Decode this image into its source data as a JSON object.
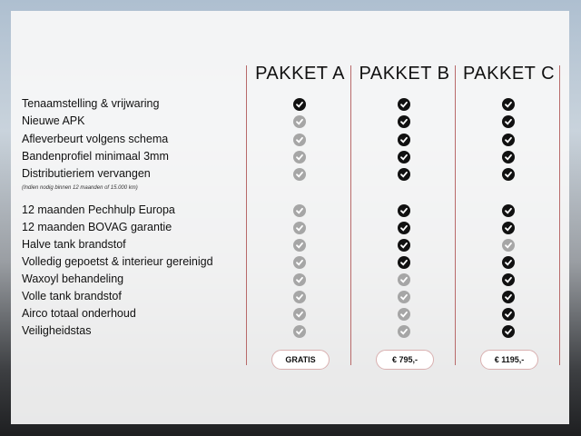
{
  "packages": [
    {
      "name": "PAKKET A",
      "price": "GRATIS"
    },
    {
      "name": "PAKKET B",
      "price": "€ 795,-"
    },
    {
      "name": "PAKKET C",
      "price": "€ 1195,-"
    }
  ],
  "note": "(Indien nodig binnen 12 maanden of 15.000 km)",
  "colors": {
    "included": "#111111",
    "excluded": "#a6a6a6",
    "divider": "#b86a6a"
  },
  "features": [
    {
      "label": "Tenaamstelling & vrijwaring",
      "included": [
        true,
        true,
        true
      ]
    },
    {
      "label": "Nieuwe APK",
      "included": [
        false,
        true,
        true
      ]
    },
    {
      "label": "Afleverbeurt volgens schema",
      "included": [
        false,
        true,
        true
      ]
    },
    {
      "label": "Bandenprofiel minimaal 3mm",
      "included": [
        false,
        true,
        true
      ]
    },
    {
      "label": "Distributieriem vervangen",
      "included": [
        false,
        true,
        true
      ]
    },
    {
      "label": "12 maanden Pechhulp Europa",
      "included": [
        false,
        true,
        true
      ]
    },
    {
      "label": "12 maanden BOVAG garantie",
      "included": [
        false,
        true,
        true
      ]
    },
    {
      "label": "Halve tank brandstof",
      "included": [
        false,
        true,
        false
      ]
    },
    {
      "label": "Volledig gepoetst & interieur gereinigd",
      "included": [
        false,
        true,
        true
      ]
    },
    {
      "label": "Waxoyl behandeling",
      "included": [
        false,
        false,
        true
      ]
    },
    {
      "label": "Volle tank brandstof",
      "included": [
        false,
        false,
        true
      ]
    },
    {
      "label": "Airco totaal onderhoud",
      "included": [
        false,
        false,
        true
      ]
    },
    {
      "label": "Veiligheidstas",
      "included": [
        false,
        false,
        true
      ]
    }
  ]
}
